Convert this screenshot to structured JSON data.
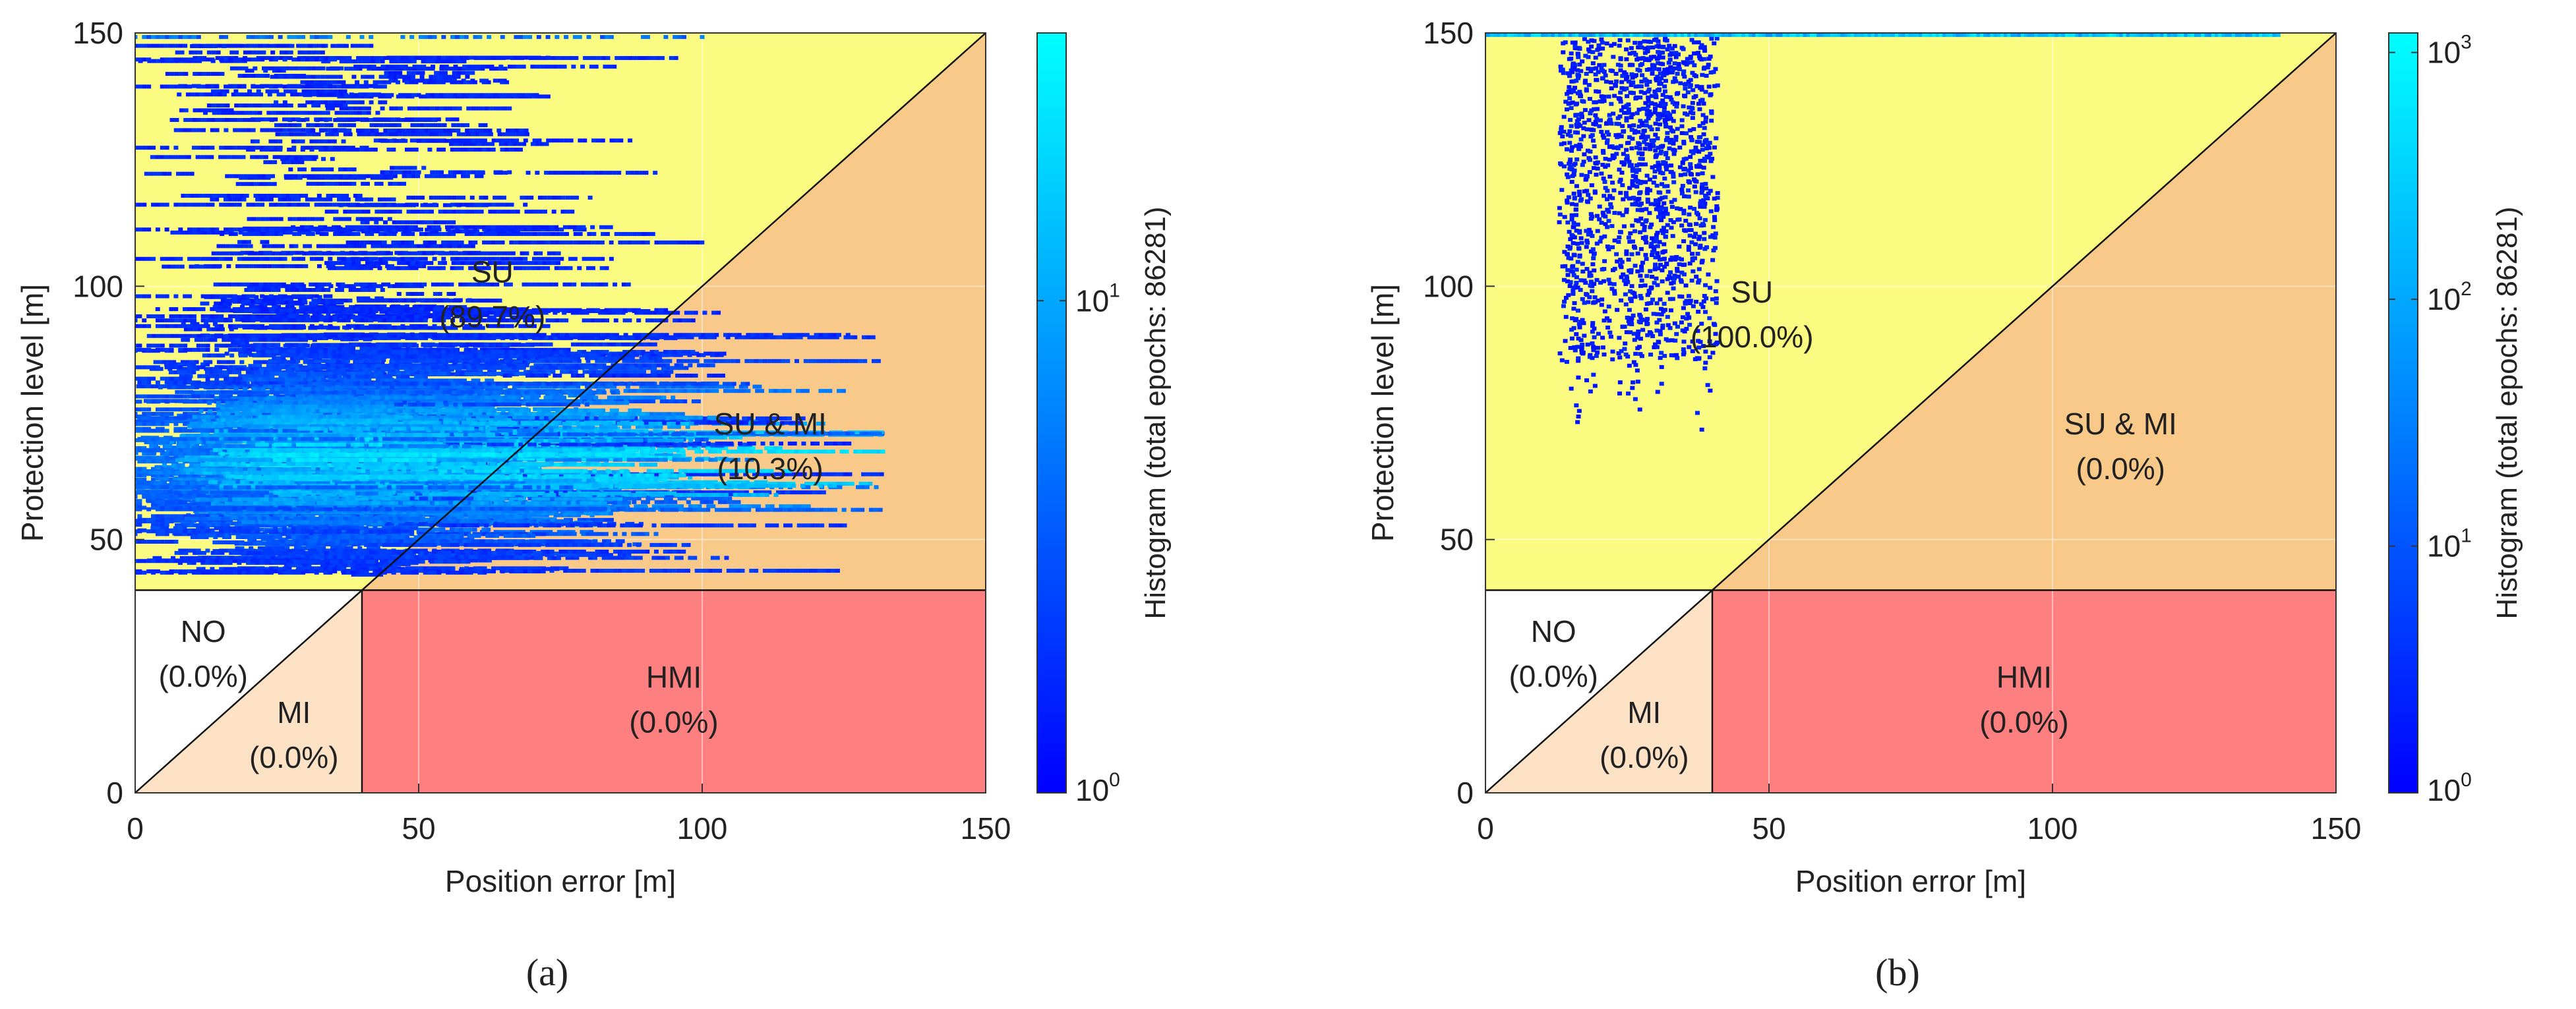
{
  "chart_data": [
    {
      "type": "heatmap",
      "panel_label": "(a)",
      "xlabel": "Position error [m]",
      "ylabel": "Protection level [m]",
      "xlim": [
        0,
        150
      ],
      "ylim": [
        0,
        150
      ],
      "x_ticks": [
        "0",
        "50",
        "100",
        "150"
      ],
      "y_ticks": [
        "0",
        "50",
        "100",
        "150"
      ],
      "alert_limit": 40,
      "colorbar": {
        "label": "Histogram (total epochs: 86281)",
        "scale": "log",
        "range": [
          1,
          35
        ],
        "ticks": [
          {
            "base": "10",
            "exp": "0",
            "value": 1
          },
          {
            "base": "10",
            "exp": "1",
            "value": 10
          }
        ]
      },
      "regions": [
        {
          "id": "su",
          "name": "SU",
          "percent": "(89.7%)",
          "color": "#fbfa81",
          "label_at": [
            63,
            100
          ]
        },
        {
          "id": "su-mi",
          "name": "SU & MI",
          "percent": "(10.3%)",
          "color": "#f9c98a",
          "label_at": [
            112,
            70
          ]
        },
        {
          "id": "no",
          "name": "NO",
          "percent": "(0.0%)",
          "color": "#ffffff",
          "label_at": [
            12,
            29
          ]
        },
        {
          "id": "mi",
          "name": "MI",
          "percent": "(0.0%)",
          "color": "#fde2c6",
          "label_at": [
            28,
            13
          ]
        },
        {
          "id": "hmi",
          "name": "HMI",
          "percent": "(0.0%)",
          "color": "#fe7f7f",
          "label_at": [
            95,
            20
          ]
        }
      ],
      "density": {
        "pe_center": 28,
        "pe_spread": 15,
        "pl_center": 66,
        "pl_spread": 11,
        "pl_min": 43,
        "pl_max": 150,
        "note": "dense horizontal streaks, PE 0–130 m, PL 43–148 m"
      }
    },
    {
      "type": "heatmap",
      "panel_label": "(b)",
      "xlabel": "Position error [m]",
      "ylabel": "Protection level [m]",
      "xlim": [
        0,
        150
      ],
      "ylim": [
        0,
        150
      ],
      "x_ticks": [
        "0",
        "50",
        "100",
        "150"
      ],
      "y_ticks": [
        "0",
        "50",
        "100",
        "150"
      ],
      "alert_limit": 40,
      "colorbar": {
        "label": "Histogram (total epochs: 86281)",
        "scale": "log",
        "range": [
          1,
          1200
        ],
        "ticks": [
          {
            "base": "10",
            "exp": "0",
            "value": 1
          },
          {
            "base": "10",
            "exp": "1",
            "value": 10
          },
          {
            "base": "10",
            "exp": "2",
            "value": 100
          },
          {
            "base": "10",
            "exp": "3",
            "value": 1000
          }
        ]
      },
      "regions": [
        {
          "id": "su",
          "name": "SU",
          "percent": "(100.0%)",
          "color": "#fbfa81",
          "label_at": [
            47,
            96
          ]
        },
        {
          "id": "su-mi",
          "name": "SU & MI",
          "percent": "(0.0%)",
          "color": "#f9c98a",
          "label_at": [
            112,
            70
          ]
        },
        {
          "id": "no",
          "name": "NO",
          "percent": "(0.0%)",
          "color": "#ffffff",
          "label_at": [
            12,
            29
          ]
        },
        {
          "id": "mi",
          "name": "MI",
          "percent": "(0.0%)",
          "color": "#fde2c6",
          "label_at": [
            28,
            13
          ]
        },
        {
          "id": "hmi",
          "name": "HMI",
          "percent": "(0.0%)",
          "color": "#fe7f7f",
          "label_at": [
            95,
            20
          ]
        }
      ],
      "density": {
        "pe_center": 26,
        "pe_spread": 6,
        "pl_min": 68,
        "pl_max": 149,
        "note": "vertical dotted columns near PE 15–40 m; saturated line at PL ≈ 149.5 m"
      }
    }
  ]
}
